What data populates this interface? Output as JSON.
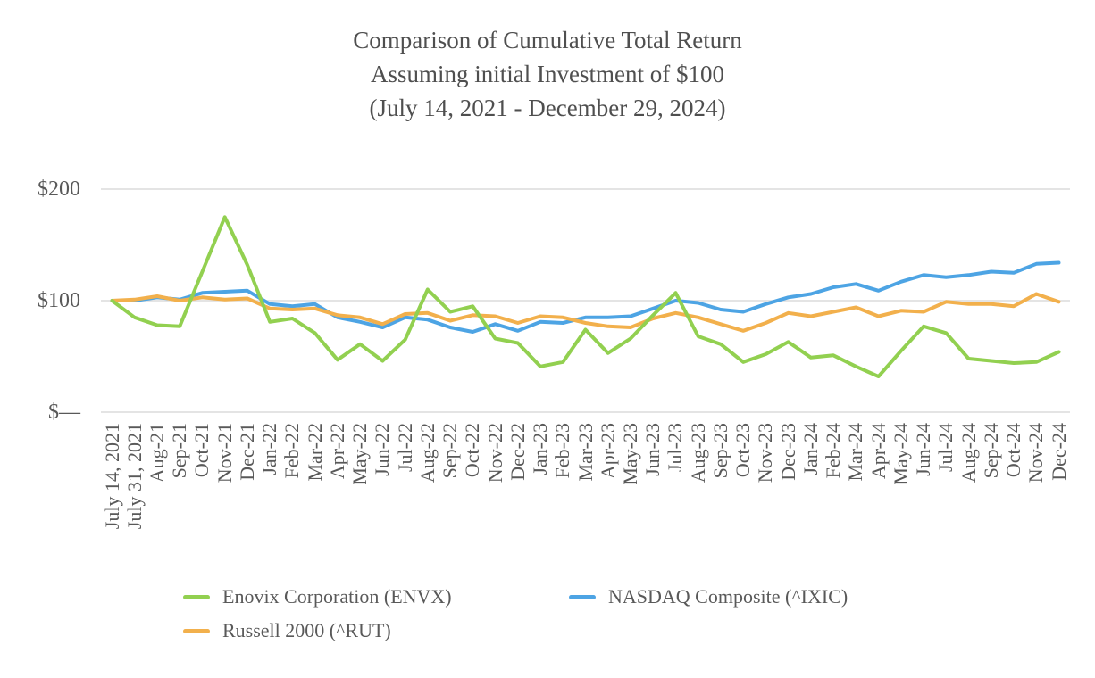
{
  "chart_data": {
    "type": "line",
    "title_lines": [
      "Comparison of Cumulative Total Return",
      "Assuming initial Investment of $100",
      "(July 14, 2021 - December 29, 2024)"
    ],
    "title": "Comparison of Cumulative Total Return Assuming initial Investment of $100 (July 14, 2021 - December 29, 2024)",
    "xlabel": "",
    "ylabel": "",
    "ylim": [
      0,
      200
    ],
    "grid": "horizontal",
    "legend_position": "bottom",
    "y_ticks": [
      {
        "label": "$200",
        "value": 200
      },
      {
        "label": "$100",
        "value": 100
      },
      {
        "label": "$—",
        "value": 0
      }
    ],
    "x_labels": [
      "July 14, 2021",
      "July 31, 2021",
      "Aug-21",
      "Sep-21",
      "Oct-21",
      "Nov-21",
      "Dec-21",
      "Jan-22",
      "Feb-22",
      "Mar-22",
      "Apr-22",
      "May-22",
      "Jun-22",
      "Jul-22",
      "Aug-22",
      "Sep-22",
      "Oct-22",
      "Nov-22",
      "Dec-22",
      "Jan-23",
      "Feb-23",
      "Mar-23",
      "Apr-23",
      "May-23",
      "Jun-23",
      "Jul-23",
      "Aug-23",
      "Sep-23",
      "Oct-23",
      "Nov-23",
      "Dec-23",
      "Jan-24",
      "Feb-24",
      "Mar-24",
      "Apr-24",
      "May-24",
      "Jun-24",
      "Jul-24",
      "Aug-24",
      "Sep-24",
      "Oct-24",
      "Nov-24",
      "Dec-24"
    ],
    "series": [
      {
        "name": "Enovix Corporation (ENVX)",
        "color": "#92D050",
        "values": [
          100,
          85,
          78,
          77,
          126,
          175,
          132,
          81,
          84,
          71,
          47,
          61,
          46,
          65,
          110,
          90,
          95,
          66,
          62,
          41,
          45,
          74,
          53,
          66,
          87,
          107,
          68,
          61,
          45,
          52,
          63,
          49,
          51,
          41,
          32,
          55,
          77,
          71,
          48,
          46,
          44,
          45,
          54
        ]
      },
      {
        "name": "NASDAQ Composite (^IXIC)",
        "color": "#4DA4E4",
        "values": [
          100,
          100,
          103,
          101,
          107,
          108,
          109,
          97,
          95,
          97,
          85,
          81,
          76,
          85,
          83,
          76,
          72,
          79,
          73,
          81,
          80,
          85,
          85,
          86,
          93,
          100,
          98,
          92,
          90,
          97,
          103,
          106,
          112,
          115,
          109,
          117,
          123,
          121,
          123,
          126,
          125,
          133,
          134
        ]
      },
      {
        "name": "Russell 2000 (^RUT)",
        "color": "#F2B04C",
        "values": [
          100,
          101,
          104,
          100,
          103,
          101,
          102,
          93,
          92,
          93,
          87,
          85,
          79,
          88,
          89,
          82,
          87,
          86,
          80,
          86,
          85,
          80,
          77,
          76,
          84,
          89,
          85,
          79,
          73,
          80,
          89,
          86,
          90,
          94,
          86,
          91,
          90,
          99,
          97,
          97,
          95,
          106,
          99
        ]
      }
    ]
  },
  "legend": {
    "items": [
      {
        "label": "Enovix Corporation (ENVX)",
        "color": "#92D050"
      },
      {
        "label": "NASDAQ Composite (^IXIC)",
        "color": "#4DA4E4"
      },
      {
        "label": "Russell 2000 (^RUT)",
        "color": "#F2B04C"
      }
    ]
  }
}
